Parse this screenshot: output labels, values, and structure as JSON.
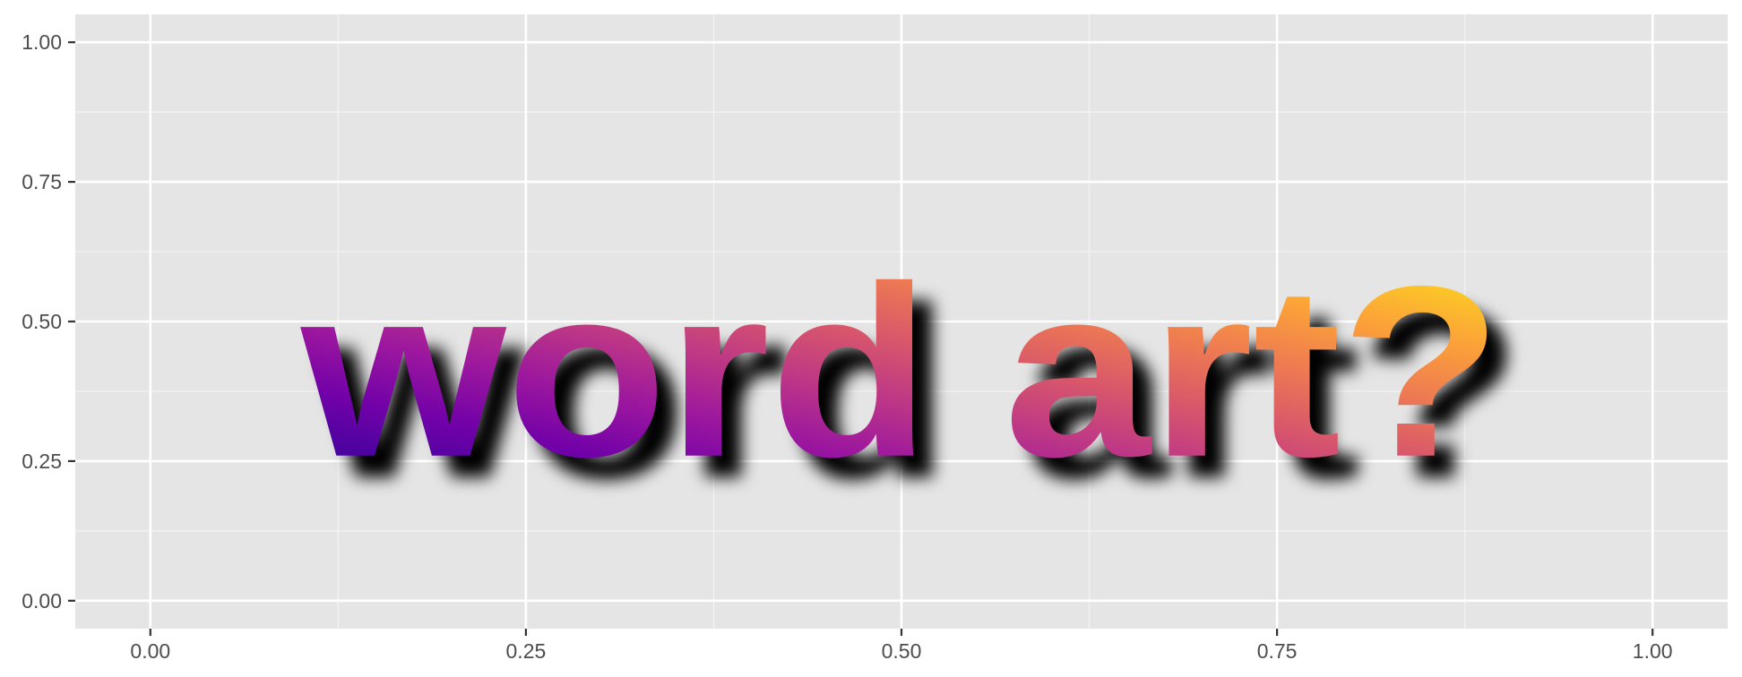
{
  "chart_data": {
    "type": "scatter",
    "title": "",
    "xlabel": "",
    "ylabel": "",
    "xlim": [
      -0.05,
      1.05
    ],
    "ylim": [
      -0.05,
      1.05
    ],
    "x_ticks": [
      0,
      0.25,
      0.5,
      0.75,
      1
    ],
    "y_ticks": [
      0,
      0.25,
      0.5,
      0.75,
      1
    ],
    "x_tick_labels": [
      "0.00",
      "0.25",
      "0.50",
      "0.75",
      "1.00"
    ],
    "y_tick_labels": [
      "0.00",
      "0.25",
      "0.50",
      "0.75",
      "1.00"
    ],
    "grid": true,
    "annotations": [
      {
        "text": "word art?",
        "x": 0.5,
        "y": 0.375,
        "style": "gradient fill with blurred drop shadow"
      }
    ]
  },
  "colors": {
    "panel_background": "#e5e5e5",
    "grid_major": "#ffffff",
    "grid_minor": "#f2f2f2",
    "tick": "#333333",
    "tick_label": "#4d4d4d",
    "shadow": "#000000",
    "word_art_palette": [
      "#0d0887",
      "#46039f",
      "#7201a8",
      "#9c179e",
      "#bd3786",
      "#d8576b",
      "#ed7953",
      "#fb9f3a",
      "#fdca26",
      "#f0f921"
    ]
  }
}
